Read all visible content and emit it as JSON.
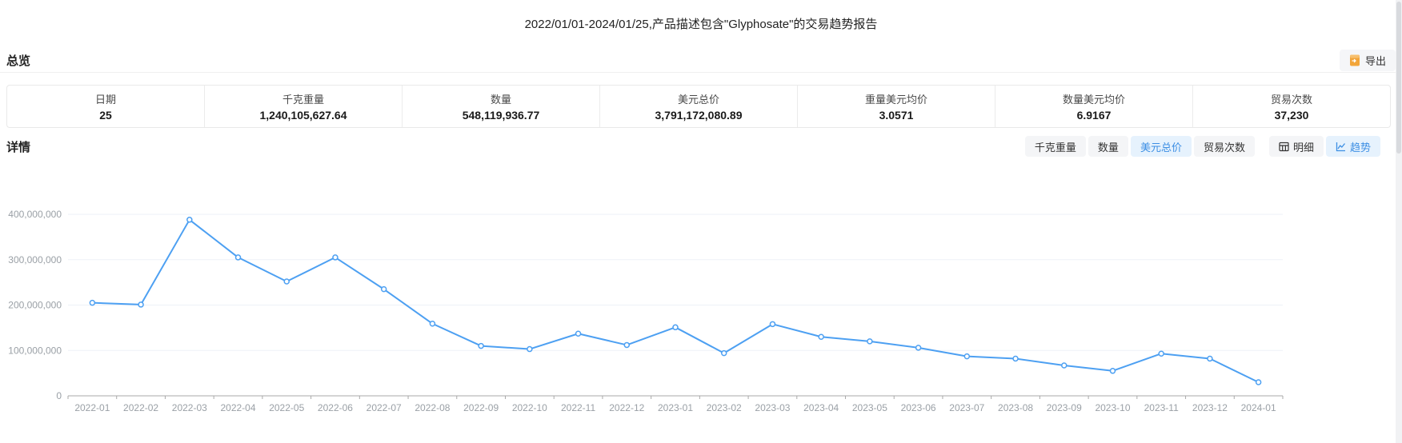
{
  "page": {
    "title": "2022/01/01-2024/01/25,产品描述包含\"Glyphosate\"的交易趋势报告"
  },
  "overview": {
    "heading": "总览",
    "export_label": "导出",
    "stats": [
      {
        "key": "date",
        "label": "日期",
        "value": "25"
      },
      {
        "key": "kg-weight",
        "label": "千克重量",
        "value": "1,240,105,627.64"
      },
      {
        "key": "quantity",
        "label": "数量",
        "value": "548,119,936.77"
      },
      {
        "key": "usd-total-price",
        "label": "美元总价",
        "value": "3,791,172,080.89"
      },
      {
        "key": "weight-usd-avg-price",
        "label": "重量美元均价",
        "value": "3.0571"
      },
      {
        "key": "quantity-usd-avg-price",
        "label": "数量美元均价",
        "value": "6.9167"
      },
      {
        "key": "trade-count",
        "label": "贸易次数",
        "value": "37,230"
      }
    ]
  },
  "detail": {
    "heading": "详情",
    "metric_tabs": [
      {
        "key": "kg-weight",
        "label": "千克重量",
        "selected": false
      },
      {
        "key": "quantity",
        "label": "数量",
        "selected": false
      },
      {
        "key": "usd-total-price",
        "label": "美元总价",
        "selected": true
      },
      {
        "key": "trade-count",
        "label": "贸易次数",
        "selected": false
      }
    ],
    "view_tabs": [
      {
        "key": "detail",
        "label": "明细",
        "icon": "table-icon",
        "selected": false
      },
      {
        "key": "trend",
        "label": "趋势",
        "icon": "trend-icon",
        "selected": true
      }
    ]
  },
  "colors": {
    "accent_blue": "#3d8fe4",
    "selected_tab_bg": "#e6f2fd",
    "export_icon_orange": "#f2a53a",
    "axis_label_gray": "#9aa0a6",
    "gridline": "#edf1f7"
  },
  "chart_data": {
    "type": "line",
    "title": "",
    "xlabel": "",
    "ylabel": "",
    "grid": true,
    "legend_position": "none",
    "line_color": "#4da0f2",
    "ylim": [
      0,
      400000000
    ],
    "yticks": [
      0,
      100000000,
      200000000,
      300000000,
      400000000
    ],
    "ytick_labels": [
      "0",
      "100,000,000",
      "200,000,000",
      "300,000,000",
      "400,000,000"
    ],
    "x": [
      "2022-01",
      "2022-02",
      "2022-03",
      "2022-04",
      "2022-05",
      "2022-06",
      "2022-07",
      "2022-08",
      "2022-09",
      "2022-10",
      "2022-11",
      "2022-12",
      "2023-01",
      "2023-02",
      "2023-03",
      "2023-04",
      "2023-05",
      "2023-06",
      "2023-07",
      "2023-08",
      "2023-09",
      "2023-10",
      "2023-11",
      "2023-12",
      "2024-01"
    ],
    "series": [
      {
        "name": "美元总价",
        "values": [
          205000000,
          201000000,
          388000000,
          305000000,
          252000000,
          305000000,
          235000000,
          159000000,
          110000000,
          103000000,
          137000000,
          112000000,
          151000000,
          94000000,
          158000000,
          130000000,
          120000000,
          106000000,
          87000000,
          82000000,
          67000000,
          55000000,
          93000000,
          82000000,
          30000000
        ]
      }
    ]
  }
}
